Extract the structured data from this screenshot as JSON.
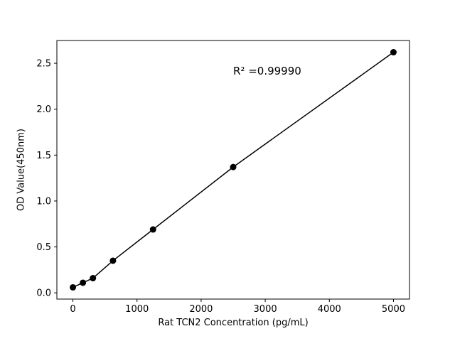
{
  "chart_data": {
    "type": "scatter",
    "title": "",
    "xlabel": "Rat TCN2 Concentration (pg/mL)",
    "ylabel": "OD Value(450nm)",
    "annotation": "R² =0.99990",
    "x": [
      0,
      156.25,
      312.5,
      625,
      1250,
      2500,
      5000
    ],
    "y": [
      0.06,
      0.11,
      0.16,
      0.35,
      0.69,
      1.37,
      2.62
    ],
    "line": true,
    "grid": false,
    "legend": "none",
    "xlim": [
      -250,
      5250
    ],
    "ylim": [
      -0.068,
      2.748
    ],
    "xticks": [
      {
        "value": 0,
        "label": "0"
      },
      {
        "value": 1000,
        "label": "1000"
      },
      {
        "value": 2000,
        "label": "2000"
      },
      {
        "value": 3000,
        "label": "3000"
      },
      {
        "value": 4000,
        "label": "4000"
      },
      {
        "value": 5000,
        "label": "5000"
      }
    ],
    "yticks": [
      {
        "value": 0.0,
        "label": "0.0"
      },
      {
        "value": 0.5,
        "label": "0.5"
      },
      {
        "value": 1.0,
        "label": "1.0"
      },
      {
        "value": 1.5,
        "label": "1.5"
      },
      {
        "value": 2.0,
        "label": "2.0"
      },
      {
        "value": 2.5,
        "label": "2.5"
      }
    ],
    "colors": {
      "marker": "#000000",
      "line": "#000000",
      "axis": "#000000",
      "background": "#ffffff"
    },
    "marker_radius": 4.5,
    "line_width": 1.5
  }
}
